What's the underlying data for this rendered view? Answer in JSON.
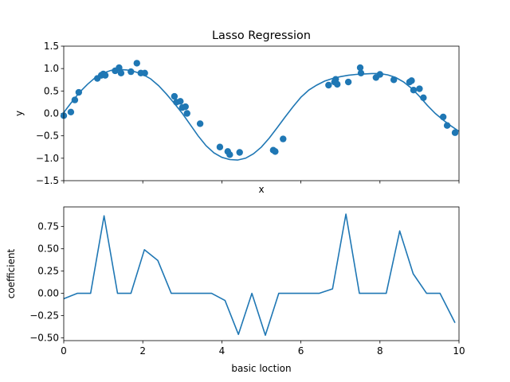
{
  "chart_data": [
    {
      "type": "scatter",
      "title": "Lasso Regression",
      "xlabel": "x",
      "ylabel": "y",
      "xlim": [
        0,
        10
      ],
      "ylim": [
        -1.5,
        1.5
      ],
      "y_ticks": [
        "1.5",
        "1.0",
        "0.5",
        "0.0",
        "−0.5",
        "−1.0",
        "−1.5"
      ],
      "x_tick_labels_shown": false,
      "color": "#1f77b4",
      "series": [
        {
          "kind": "points",
          "x": [
            0.0,
            0.18,
            0.28,
            0.38,
            0.85,
            0.95,
            1.0,
            1.05,
            1.3,
            1.4,
            1.45,
            1.7,
            1.85,
            1.95,
            2.05,
            2.8,
            2.85,
            2.95,
            3.0,
            3.08,
            3.12,
            3.45,
            3.95,
            4.15,
            4.2,
            4.45,
            5.3,
            5.35,
            5.55,
            6.7,
            6.85,
            6.88,
            6.92,
            7.2,
            7.5,
            7.52,
            7.9,
            8.0,
            8.35,
            8.75,
            8.8,
            8.85,
            9.0,
            9.1,
            9.6,
            9.7,
            9.9
          ],
          "y": [
            -0.05,
            0.03,
            0.3,
            0.47,
            0.78,
            0.85,
            0.88,
            0.85,
            0.95,
            1.02,
            0.9,
            0.93,
            1.12,
            0.9,
            0.9,
            0.38,
            0.25,
            0.27,
            0.13,
            0.15,
            0.0,
            -0.23,
            -0.75,
            -0.85,
            -0.92,
            -0.87,
            -0.82,
            -0.85,
            -0.57,
            0.63,
            0.7,
            0.76,
            0.65,
            0.7,
            1.02,
            0.9,
            0.8,
            0.87,
            0.75,
            0.7,
            0.73,
            0.52,
            0.55,
            0.35,
            -0.08,
            -0.27,
            -0.43
          ]
        },
        {
          "kind": "curve",
          "x": [
            0,
            0.2,
            0.4,
            0.6,
            0.8,
            1.0,
            1.2,
            1.4,
            1.6,
            1.8,
            2.0,
            2.2,
            2.4,
            2.6,
            2.8,
            3.0,
            3.2,
            3.4,
            3.6,
            3.8,
            4.0,
            4.2,
            4.4,
            4.6,
            4.8,
            5.0,
            5.2,
            5.4,
            5.6,
            5.8,
            6.0,
            6.2,
            6.4,
            6.6,
            6.8,
            7.0,
            7.2,
            7.4,
            7.6,
            7.8,
            8.0,
            8.2,
            8.4,
            8.6,
            8.8,
            9.0,
            9.2,
            9.4,
            9.6,
            9.8,
            10.0
          ],
          "y": [
            0.02,
            0.25,
            0.47,
            0.65,
            0.8,
            0.9,
            0.96,
            0.98,
            0.97,
            0.93,
            0.87,
            0.77,
            0.62,
            0.43,
            0.22,
            0.0,
            -0.25,
            -0.5,
            -0.72,
            -0.88,
            -0.98,
            -1.03,
            -1.04,
            -1.0,
            -0.9,
            -0.75,
            -0.55,
            -0.32,
            -0.08,
            0.15,
            0.36,
            0.52,
            0.63,
            0.72,
            0.78,
            0.82,
            0.85,
            0.87,
            0.88,
            0.89,
            0.89,
            0.86,
            0.8,
            0.7,
            0.56,
            0.38,
            0.18,
            0.0,
            -0.15,
            -0.28,
            -0.4
          ]
        }
      ]
    },
    {
      "type": "line",
      "title": "",
      "xlabel": "basic loction",
      "ylabel": "coefficient",
      "xlim": [
        0,
        10
      ],
      "ylim": [
        -0.53,
        0.97
      ],
      "x_ticks": [
        "0",
        "2",
        "4",
        "6",
        "8",
        "10"
      ],
      "y_ticks": [
        "0.75",
        "0.50",
        "0.25",
        "0.00",
        "−0.25",
        "−0.50"
      ],
      "color": "#1f77b4",
      "series": [
        {
          "x": [
            0.0,
            0.34,
            0.68,
            1.02,
            1.36,
            1.7,
            2.04,
            2.38,
            2.72,
            3.06,
            3.4,
            3.74,
            4.08,
            4.42,
            4.76,
            5.1,
            5.44,
            5.78,
            6.12,
            6.46,
            6.8,
            7.14,
            7.48,
            7.82,
            8.16,
            8.5,
            8.84,
            9.18,
            9.52,
            9.9
          ],
          "y": [
            -0.06,
            0.0,
            0.0,
            0.87,
            0.0,
            0.0,
            0.49,
            0.37,
            0.0,
            0.0,
            0.0,
            0.0,
            -0.08,
            -0.46,
            0.0,
            -0.47,
            0.0,
            0.0,
            0.0,
            0.0,
            0.05,
            0.89,
            0.0,
            0.0,
            0.0,
            0.7,
            0.22,
            0.0,
            0.0,
            -0.33
          ]
        }
      ]
    }
  ]
}
